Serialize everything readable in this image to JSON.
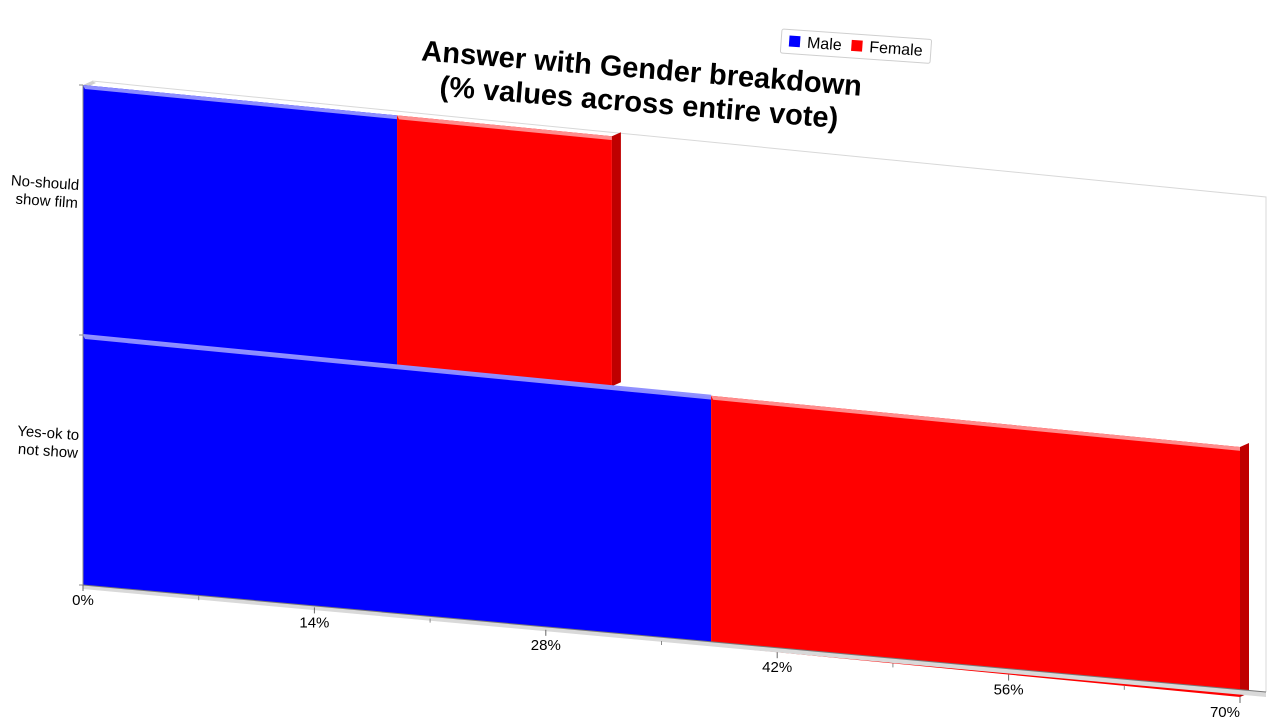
{
  "chart_data": {
    "type": "bar",
    "orientation": "horizontal",
    "stacked": true,
    "three_d": true,
    "title_lines": [
      "Answer with Gender breakdown",
      "(% values across entire vote)"
    ],
    "categories": [
      "No-should show film",
      "Yes-ok to not show"
    ],
    "category_label_lines": [
      [
        "No-should",
        "show film"
      ],
      [
        "Yes-ok to",
        "not show"
      ]
    ],
    "series": [
      {
        "name": "Male",
        "color": "#0000ff",
        "values": [
          19,
          38
        ]
      },
      {
        "name": "Female",
        "color": "#ff0000",
        "values": [
          13,
          32
        ]
      }
    ],
    "x_ticks": [
      "0%",
      "14%",
      "28%",
      "42%",
      "56%",
      "70%"
    ],
    "x_tick_values": [
      0,
      14,
      28,
      42,
      56,
      70
    ],
    "xlim": [
      0,
      70
    ],
    "legend_position": "top-right",
    "grid": false
  }
}
